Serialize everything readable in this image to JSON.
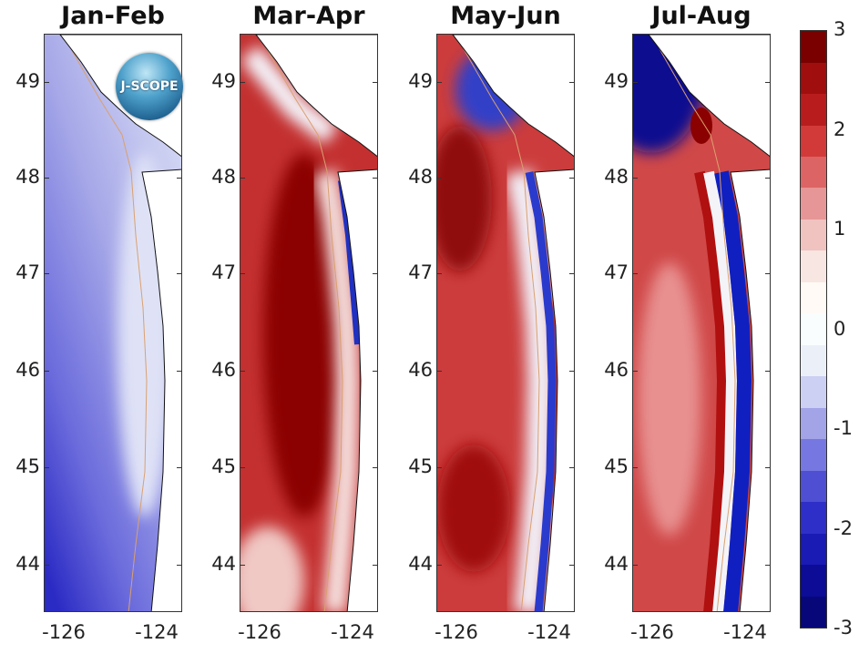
{
  "panels": [
    {
      "title": "Jan-Feb",
      "field": "jan-feb"
    },
    {
      "title": "Mar-Apr",
      "field": "mar-apr"
    },
    {
      "title": "May-Jun",
      "field": "may-jun"
    },
    {
      "title": "Jul-Aug",
      "field": "jul-aug"
    }
  ],
  "lat_ticks": [
    "49",
    "48",
    "47",
    "46",
    "45",
    "44"
  ],
  "lon_ticks": [
    "-126",
    "-124"
  ],
  "logo_text": "J-SCOPE",
  "colorbar": {
    "ticks": [
      "3",
      "2",
      "1",
      "0",
      "-1",
      "-2",
      "-3"
    ],
    "range": [
      -3,
      3
    ],
    "colors": [
      "#07077a",
      "#0c0c96",
      "#1a1ab4",
      "#2e2ec8",
      "#4f4fd4",
      "#7777e2",
      "#a3a3e8",
      "#ccd0f2",
      "#ebf0f8",
      "#f9fdfe",
      "#fffaf6",
      "#f8e6e2",
      "#f0c2c0",
      "#e69696",
      "#dc6464",
      "#d23a3a",
      "#b81c1c",
      "#a00e0e",
      "#7a0000"
    ]
  }
}
